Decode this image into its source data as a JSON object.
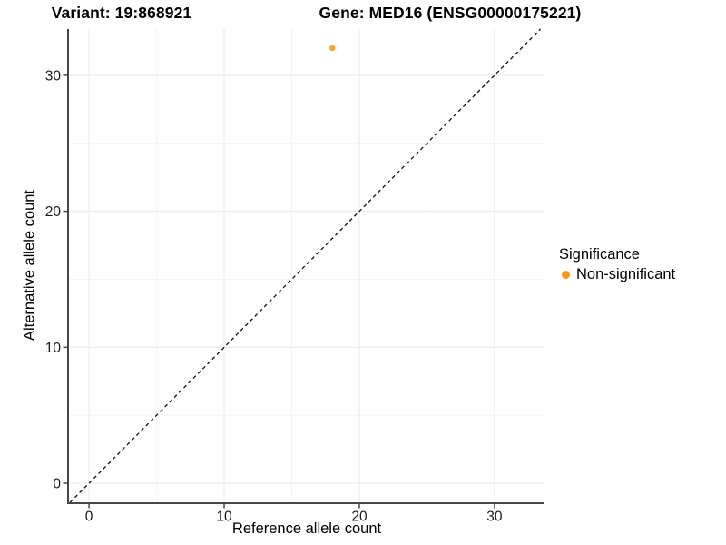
{
  "chart_data": {
    "type": "scatter",
    "title_left": "Variant: 19:868921",
    "title_right": "Gene: MED16 (ENSG00000175221)",
    "xlabel": "Reference allele count",
    "ylabel": "Alternative allele count",
    "xlim": [
      -1.55,
      33.7
    ],
    "ylim": [
      -1.4,
      33.4
    ],
    "x_major_ticks": [
      0,
      10,
      20,
      30
    ],
    "y_major_ticks": [
      0,
      10,
      20,
      30
    ],
    "x_minor_ticks": [
      5,
      15,
      25
    ],
    "y_minor_ticks": [
      5,
      15,
      25
    ],
    "grid": {
      "major_color": "#ececec",
      "minor_color": "#f4f4f4",
      "background": "#ffffff"
    },
    "axis_color": "#464646",
    "identity_line": {
      "slope": 1,
      "intercept": 0,
      "style": "dashed",
      "color": "#111111"
    },
    "series": [
      {
        "name": "Non-significant",
        "color": "#FB9820",
        "points": [
          {
            "x": 18,
            "y": 32
          }
        ]
      }
    ],
    "legend": {
      "title": "Significance",
      "position": "right",
      "items": [
        {
          "label": "Non-significant",
          "color": "#FB9820"
        }
      ]
    }
  }
}
